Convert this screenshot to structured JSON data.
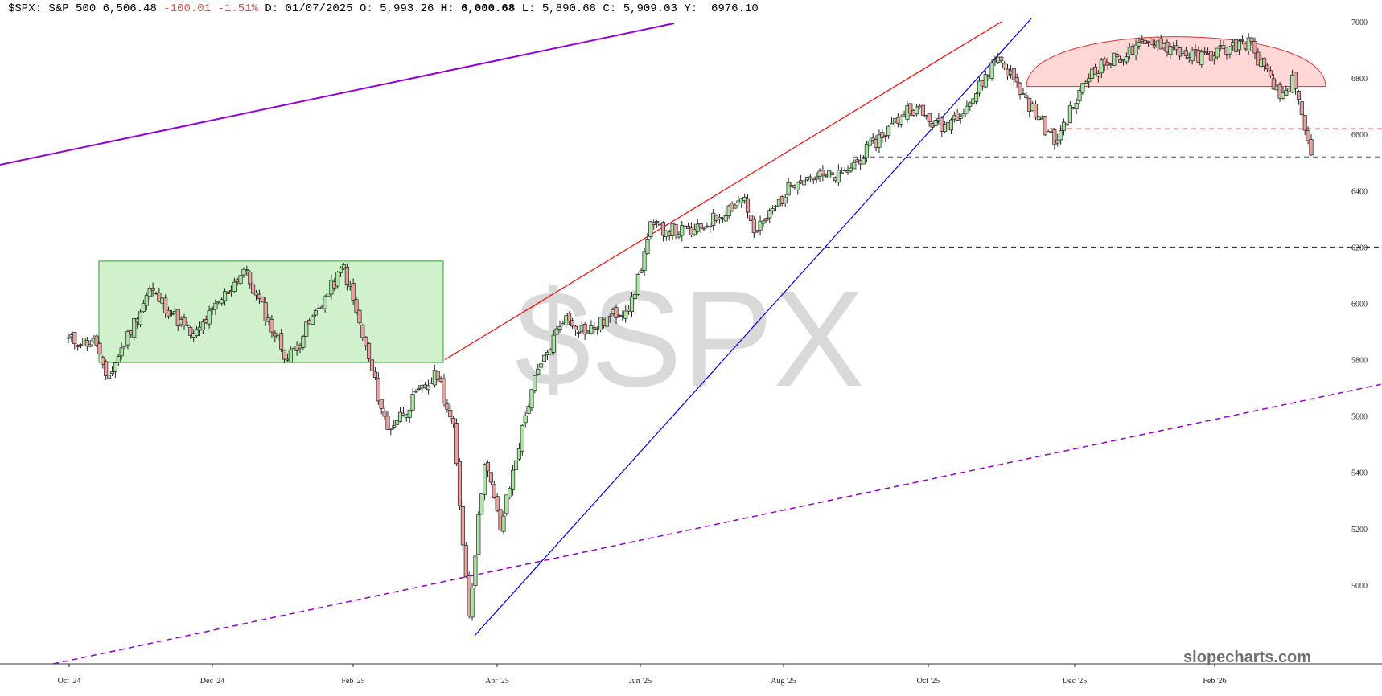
{
  "header": {
    "symbol": "$SPX:",
    "name": "S&P 500",
    "last": "6,506.48",
    "change": "-100.01",
    "change_pct": "-1.51%",
    "date_label": "D:",
    "date": "01/07/2025",
    "open_label": "O:",
    "open": "5,993.26",
    "high_label": "H:",
    "high": "6,000.68",
    "low_label": "L:",
    "low": "5,890.68",
    "close_label": "C:",
    "close": "5,909.03",
    "y_label": "Y:",
    "y": "6976.10"
  },
  "watermark": "$SPX",
  "brand": "slopecharts.com",
  "colors": {
    "up_candle": "#a8e6a1",
    "down_candle": "#e8a0a0",
    "green_box": "#c9eec4",
    "red_dome": "#ffd7d7",
    "channel_top": "#ff0000",
    "trend_blue": "#0000ff",
    "purple": "#9400d3",
    "support_navy": "#1a1a7a",
    "negative_text": "#d9534f"
  },
  "chart_data": {
    "type": "candlestick",
    "y_axis": {
      "range": [
        4800,
        7000
      ],
      "ticks": [
        "7000",
        "6800",
        "6600",
        "6400",
        "6200",
        "6000",
        "5800",
        "5600",
        "5400",
        "5200",
        "5000"
      ]
    },
    "x_axis": {
      "ticks": [
        "Oct '24",
        "Dec '24",
        "Feb '25",
        "Apr '25",
        "Jun '25",
        "Aug '25",
        "Oct '25",
        "Dec '25",
        "Feb '26"
      ]
    },
    "horizontal_levels": [
      {
        "value": 6620,
        "style": "dashed",
        "color": "red"
      },
      {
        "value": 6520,
        "style": "dashed",
        "color": "blue"
      },
      {
        "value": 6200,
        "style": "dashed",
        "color": "navy"
      }
    ],
    "zones": [
      {
        "shape": "rectangle",
        "color": "green",
        "low": 5790,
        "high": 6150
      },
      {
        "shape": "dome",
        "color": "red",
        "base": 6770,
        "top": 7000
      }
    ],
    "trendlines": [
      {
        "color": "purple",
        "style": "solid"
      },
      {
        "color": "purple",
        "style": "dashed"
      },
      {
        "color": "red",
        "style": "solid"
      },
      {
        "color": "blue",
        "style": "solid"
      }
    ],
    "segments": [
      {
        "start": 5870,
        "end": 5860,
        "bars": 10
      },
      {
        "start": 5860,
        "end": 5720,
        "bars": 3
      },
      {
        "start": 5720,
        "end": 6050,
        "bars": 14
      },
      {
        "start": 6050,
        "end": 5880,
        "bars": 14
      },
      {
        "start": 5880,
        "end": 6120,
        "bars": 16
      },
      {
        "start": 6120,
        "end": 5800,
        "bars": 14
      },
      {
        "start": 5800,
        "end": 6130,
        "bars": 18
      },
      {
        "start": 6130,
        "end": 5550,
        "bars": 14
      },
      {
        "start": 5550,
        "end": 5680,
        "bars": 10
      },
      {
        "start": 5680,
        "end": 5750,
        "bars": 6
      },
      {
        "start": 5750,
        "end": 5550,
        "bars": 5
      },
      {
        "start": 5550,
        "end": 4900,
        "bars": 5
      },
      {
        "start": 4900,
        "end": 5450,
        "bars": 5
      },
      {
        "start": 5450,
        "end": 5200,
        "bars": 5
      },
      {
        "start": 5200,
        "end": 5700,
        "bars": 10
      },
      {
        "start": 5700,
        "end": 5950,
        "bars": 10
      },
      {
        "start": 5950,
        "end": 5900,
        "bars": 8
      },
      {
        "start": 5900,
        "end": 6000,
        "bars": 14
      },
      {
        "start": 6000,
        "end": 6270,
        "bars": 6
      },
      {
        "start": 6270,
        "end": 6250,
        "bars": 14
      },
      {
        "start": 6250,
        "end": 6380,
        "bars": 16
      },
      {
        "start": 6380,
        "end": 6240,
        "bars": 3
      },
      {
        "start": 6240,
        "end": 6450,
        "bars": 14
      },
      {
        "start": 6450,
        "end": 6450,
        "bars": 14
      },
      {
        "start": 6450,
        "end": 6700,
        "bars": 22
      },
      {
        "start": 6700,
        "end": 6620,
        "bars": 10
      },
      {
        "start": 6620,
        "end": 6730,
        "bars": 10
      },
      {
        "start": 6730,
        "end": 6880,
        "bars": 8
      },
      {
        "start": 6880,
        "end": 6740,
        "bars": 8
      },
      {
        "start": 6740,
        "end": 6570,
        "bars": 10
      },
      {
        "start": 6570,
        "end": 6830,
        "bars": 12
      },
      {
        "start": 6830,
        "end": 6930,
        "bars": 20
      },
      {
        "start": 6930,
        "end": 6870,
        "bars": 14
      },
      {
        "start": 6870,
        "end": 6930,
        "bars": 16
      },
      {
        "start": 6930,
        "end": 6730,
        "bars": 10
      },
      {
        "start": 6730,
        "end": 6790,
        "bars": 4
      },
      {
        "start": 6790,
        "end": 6520,
        "bars": 6
      }
    ]
  }
}
